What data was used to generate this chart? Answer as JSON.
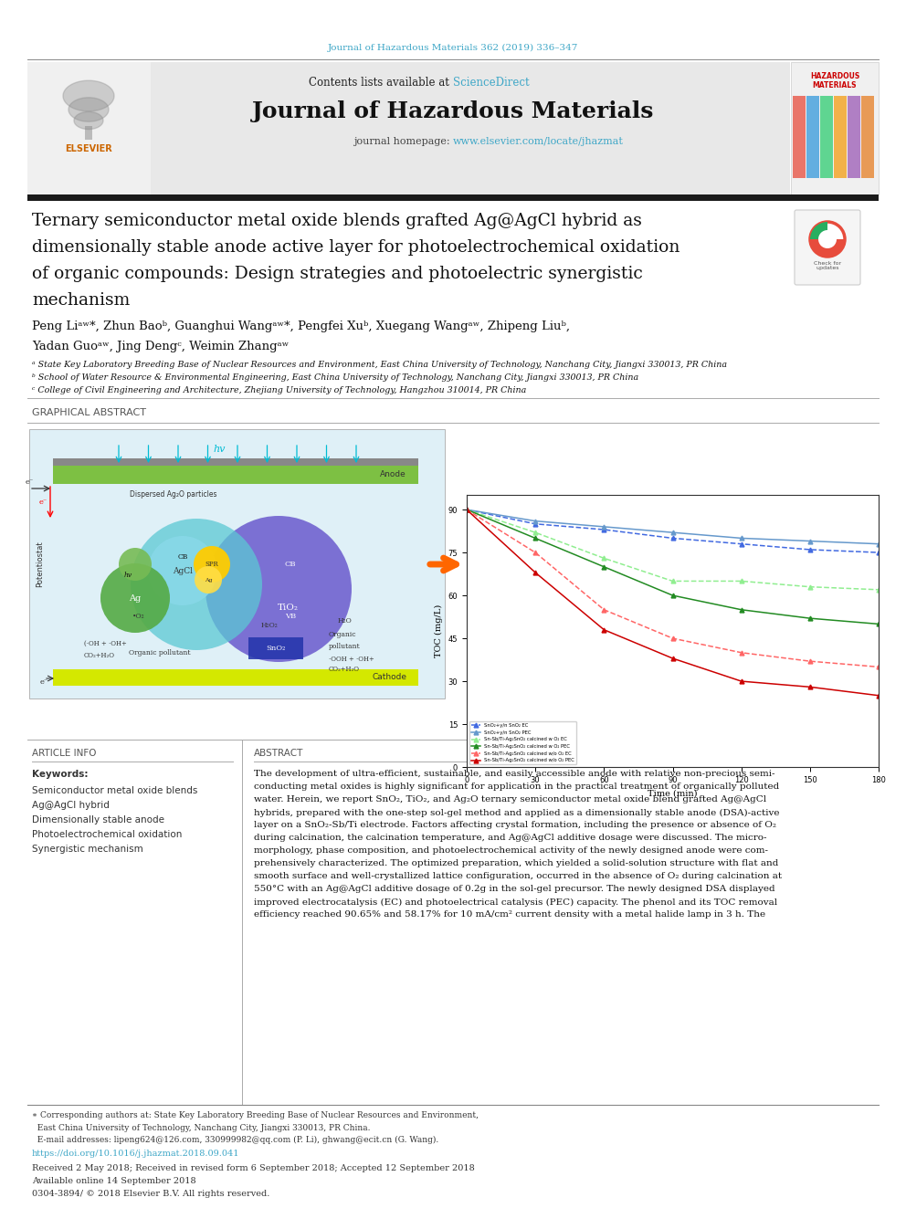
{
  "page_width": 9.92,
  "page_height": 13.23,
  "bg_color": "#ffffff",
  "journal_citation": "Journal of Hazardous Materials 362 (2019) 336–347",
  "journal_citation_color": "#3fa7c7",
  "journal_name": "Journal of Hazardous Materials",
  "journal_homepage_link_color": "#3fa7c7",
  "sciencedirect_color": "#3fa7c7",
  "header_bg": "#e8e8e8",
  "thick_bar_color": "#1a1a1a",
  "graphical_abstract_label": "GRAPHICAL ABSTRACT",
  "article_info_label": "ARTICLE INFO",
  "abstract_label": "ABSTRACT",
  "keywords_label": "Keywords:",
  "keywords": [
    "Semiconductor metal oxide blends",
    "Ag@AgCl hybrid",
    "Dimensionally stable anode",
    "Photoelectrochemical oxidation",
    "Synergistic mechanism"
  ],
  "affil_a": "ᵃ State Key Laboratory Breeding Base of Nuclear Resources and Environment, East China University of Technology, Nanchang City, Jiangxi 330013, PR China",
  "affil_b": "ᵇ School of Water Resource & Environmental Engineering, East China University of Technology, Nanchang City, Jiangxi 330013, PR China",
  "affil_c": "ᶜ College of Civil Engineering and Architecture, Zhejiang University of Technology, Hangzhou 310014, PR China",
  "doi_text": "https://doi.org/10.1016/j.jhazmat.2018.09.041",
  "doi_color": "#3fa7c7",
  "received_text": "Received 2 May 2018; Received in revised form 6 September 2018; Accepted 12 September 2018",
  "available_text": "Available online 14 September 2018",
  "copyright_text": "0304-3894/ © 2018 Elsevier B.V. All rights reserved.",
  "abstract_lines": [
    "The development of ultra-efficient, sustainable, and easily accessible anode with relative non-precious semi-",
    "conducting metal oxides is highly significant for application in the practical treatment of organically polluted",
    "water. Herein, we report SnO₂, TiO₂, and Ag₂O ternary semiconductor metal oxide blend grafted Ag@AgCl",
    "hybrids, prepared with the one-step sol-gel method and applied as a dimensionally stable anode (DSA)-active",
    "layer on a SnO₂-Sb/Ti electrode. Factors affecting crystal formation, including the presence or absence of O₂",
    "during calcination, the calcination temperature, and Ag@AgCl additive dosage were discussed. The micro-",
    "morphology, phase composition, and photoelectrochemical activity of the newly designed anode were com-",
    "prehensively characterized. The optimized preparation, which yielded a solid-solution structure with flat and",
    "smooth surface and well-crystallized lattice configuration, occurred in the absence of O₂ during calcination at",
    "550°C with an Ag@AgCl additive dosage of 0.2g in the sol-gel precursor. The newly designed DSA displayed",
    "improved electrocatalysis (EC) and photoelectrical catalysis (PEC) capacity. The phenol and its TOC removal",
    "efficiency reached 90.65% and 58.17% for 10 mA/cm² current density with a metal halide lamp in 3 h. The"
  ],
  "graph_data": {
    "x": [
      0,
      30,
      60,
      90,
      120,
      150,
      180
    ],
    "series": [
      {
        "label": "SnO₂+y/n SnO₂ EC",
        "color": "#4169e1",
        "marker": "^",
        "style": "--",
        "y": [
          90,
          85,
          83,
          80,
          78,
          76,
          75
        ]
      },
      {
        "label": "SnO₂+y/n SnO₂ PEC",
        "color": "#6699cc",
        "marker": "^",
        "style": "-",
        "y": [
          90,
          86,
          84,
          82,
          80,
          79,
          78
        ]
      },
      {
        "label": "Sn-Sb/Ti-Ag₂SnO₂ calcined w O₂ EC",
        "color": "#90ee90",
        "marker": "^",
        "style": "--",
        "y": [
          90,
          82,
          73,
          65,
          65,
          63,
          62
        ]
      },
      {
        "label": "Sn-Sb/Ti-Ag₂SnO₂ calcined w O₂ PEC",
        "color": "#228b22",
        "marker": "^",
        "style": "-",
        "y": [
          90,
          80,
          70,
          60,
          55,
          52,
          50
        ]
      },
      {
        "label": "Sn-Sb/Ti-Ag₂SnO₂ calcined w/o O₂ EC",
        "color": "#ff6666",
        "marker": "^",
        "style": "--",
        "y": [
          90,
          75,
          55,
          45,
          40,
          37,
          35
        ]
      },
      {
        "label": "Sn-Sb/Ti-Ag₂SnO₂ calcined w/o O₂ PEC",
        "color": "#cc0000",
        "marker": "^",
        "style": "-",
        "y": [
          90,
          68,
          48,
          38,
          30,
          28,
          25
        ]
      }
    ],
    "xlabel": "Time (min)",
    "ylabel": "TOC (mg/L)",
    "ylim": [
      0,
      95
    ],
    "xlim": [
      0,
      180
    ]
  }
}
